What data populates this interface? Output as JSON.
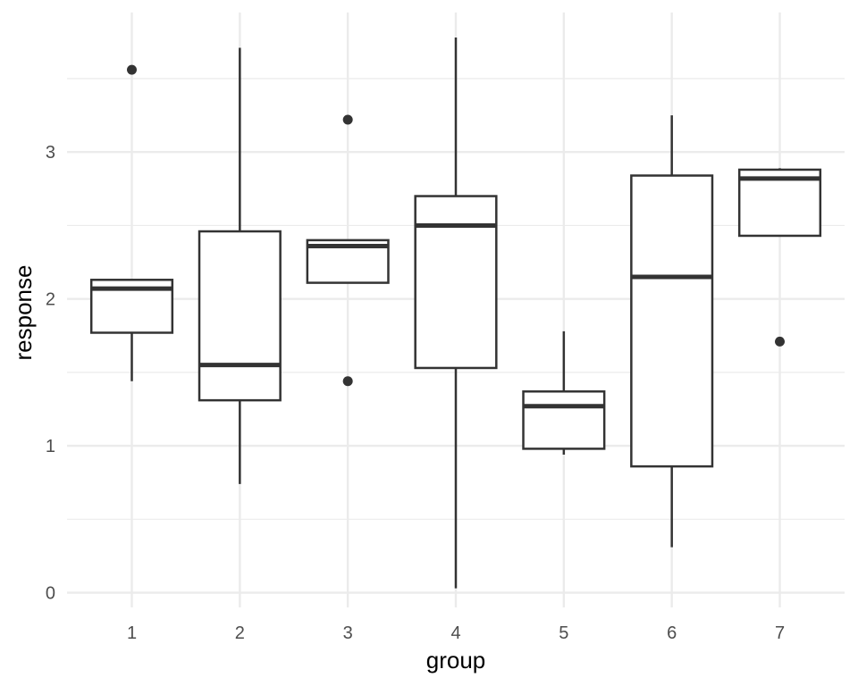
{
  "chart_data": {
    "type": "boxplot",
    "title": "",
    "xlabel": "group",
    "ylabel": "response",
    "ylim": [
      -0.1,
      3.95
    ],
    "y_ticks": [
      0,
      1,
      2,
      3
    ],
    "y_tick_labels": [
      "0",
      "1",
      "2",
      "3"
    ],
    "categories": [
      "1",
      "2",
      "3",
      "4",
      "5",
      "6",
      "7"
    ],
    "grid": "major and minor",
    "legend": "none",
    "boxes": [
      {
        "group": "1",
        "whisker_low": 1.44,
        "q1": 1.77,
        "median": 2.07,
        "q3": 2.13,
        "whisker_high": 2.13,
        "outliers": [
          3.56
        ]
      },
      {
        "group": "2",
        "whisker_low": 0.74,
        "q1": 1.31,
        "median": 1.55,
        "q3": 2.46,
        "whisker_high": 3.71,
        "outliers": []
      },
      {
        "group": "3",
        "whisker_low": 2.11,
        "q1": 2.11,
        "median": 2.36,
        "q3": 2.4,
        "whisker_high": 2.4,
        "outliers": [
          3.22,
          1.44
        ]
      },
      {
        "group": "4",
        "whisker_low": 0.03,
        "q1": 1.53,
        "median": 2.5,
        "q3": 2.7,
        "whisker_high": 3.78,
        "outliers": []
      },
      {
        "group": "5",
        "whisker_low": 0.94,
        "q1": 0.98,
        "median": 1.27,
        "q3": 1.37,
        "whisker_high": 1.78,
        "outliers": []
      },
      {
        "group": "6",
        "whisker_low": 0.31,
        "q1": 0.86,
        "median": 2.15,
        "q3": 2.84,
        "whisker_high": 3.25,
        "outliers": []
      },
      {
        "group": "7",
        "whisker_low": 2.43,
        "q1": 2.43,
        "median": 2.82,
        "q3": 2.88,
        "whisker_high": 2.89,
        "outliers": [
          1.71
        ]
      }
    ],
    "colors": {
      "background": "#ffffff",
      "grid": "#ebebeb",
      "box_line": "#333333",
      "outlier": "#333333",
      "tick_text": "#4d4d4d",
      "title_text": "#000000"
    }
  }
}
